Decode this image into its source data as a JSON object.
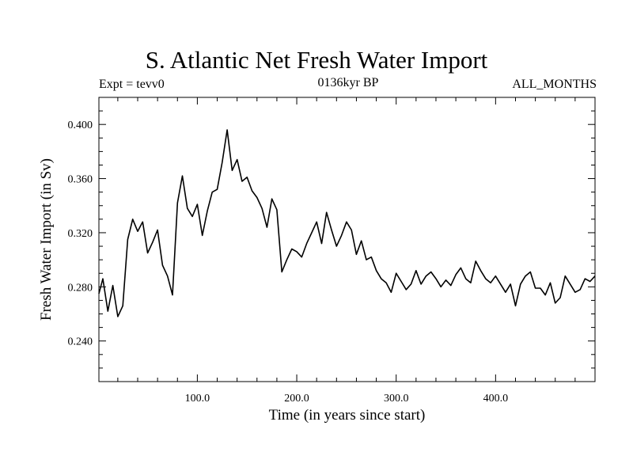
{
  "chart_data": {
    "type": "line",
    "title": "S. Atlantic Net Fresh Water Import",
    "subtitle_left": "Expt = tevv0",
    "subtitle_center": "0136kyr BP",
    "subtitle_right": "ALL_MONTHS",
    "xlabel": "Time (in years since start)",
    "ylabel": "Fresh Water Import (in Sv)",
    "xlim": [
      1,
      500
    ],
    "ylim": [
      0.21,
      0.42
    ],
    "xticks": [
      100,
      200,
      300,
      400
    ],
    "xtick_labels": [
      "100.0",
      "200.0",
      "300.0",
      "400.0"
    ],
    "yticks": [
      0.24,
      0.28,
      0.32,
      0.36,
      0.4
    ],
    "ytick_labels": [
      "0.240",
      "0.280",
      "0.320",
      "0.360",
      "0.400"
    ],
    "grid": false,
    "legend": "none",
    "series": [
      {
        "color": "#000000",
        "x": [
          1,
          5,
          10,
          15,
          20,
          25,
          30,
          35,
          40,
          45,
          50,
          55,
          60,
          65,
          70,
          75,
          80,
          85,
          90,
          95,
          100,
          105,
          110,
          115,
          120,
          125,
          130,
          135,
          140,
          145,
          150,
          155,
          160,
          165,
          170,
          175,
          180,
          185,
          190,
          195,
          200,
          205,
          210,
          215,
          220,
          225,
          230,
          235,
          240,
          245,
          250,
          255,
          260,
          265,
          270,
          275,
          280,
          285,
          290,
          295,
          300,
          305,
          310,
          315,
          320,
          325,
          330,
          335,
          340,
          345,
          350,
          355,
          360,
          365,
          370,
          375,
          380,
          385,
          390,
          395,
          400,
          405,
          410,
          415,
          420,
          425,
          430,
          435,
          440,
          445,
          450,
          455,
          460,
          465,
          470,
          475,
          480,
          485,
          490,
          495,
          500
        ],
        "y": [
          0.275,
          0.286,
          0.262,
          0.281,
          0.258,
          0.266,
          0.315,
          0.33,
          0.321,
          0.328,
          0.305,
          0.313,
          0.322,
          0.296,
          0.288,
          0.274,
          0.342,
          0.362,
          0.338,
          0.332,
          0.341,
          0.318,
          0.336,
          0.35,
          0.352,
          0.372,
          0.396,
          0.366,
          0.374,
          0.358,
          0.361,
          0.351,
          0.346,
          0.338,
          0.324,
          0.345,
          0.337,
          0.291,
          0.3,
          0.308,
          0.306,
          0.302,
          0.312,
          0.32,
          0.328,
          0.312,
          0.335,
          0.322,
          0.31,
          0.318,
          0.328,
          0.322,
          0.304,
          0.314,
          0.3,
          0.302,
          0.292,
          0.286,
          0.283,
          0.276,
          0.29,
          0.284,
          0.278,
          0.282,
          0.292,
          0.282,
          0.288,
          0.291,
          0.286,
          0.28,
          0.285,
          0.281,
          0.289,
          0.294,
          0.286,
          0.283,
          0.299,
          0.292,
          0.286,
          0.283,
          0.288,
          0.282,
          0.276,
          0.282,
          0.266,
          0.282,
          0.288,
          0.291,
          0.279,
          0.279,
          0.274,
          0.283,
          0.268,
          0.272,
          0.288,
          0.282,
          0.276,
          0.278,
          0.286,
          0.284,
          0.288
        ]
      }
    ]
  }
}
